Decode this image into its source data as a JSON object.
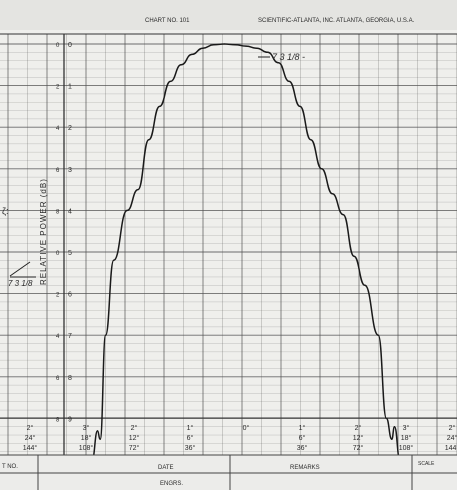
{
  "header": {
    "chart_no_label": "CHART NO. 101",
    "company": "SCIENTIFIC-ATLANTA, INC. ATLANTA, GEORGIA, U.S.A."
  },
  "annotations": {
    "peak_note": "7 3 1/8 -",
    "left_note": "7 3 1/8"
  },
  "footer": {
    "chart_no": "T NO.",
    "date": "DATE",
    "engrs": "ENGRS.",
    "remarks": "REMARKS",
    "scale": "SCALE"
  },
  "colors": {
    "paper": "#efefec",
    "grid": "#555555",
    "trace": "#1a1a1a"
  },
  "chart_data": {
    "type": "line",
    "title": "",
    "xlabel": "",
    "ylabel": "RELATIVE POWER (dB)",
    "ylim": [
      0,
      10
    ],
    "y_ticks": [
      "0",
      "1",
      "2",
      "3",
      "4",
      "5",
      "6",
      "7",
      "8",
      "9",
      "10"
    ],
    "left_column_labels": [
      "0",
      "2",
      "4",
      "6",
      "8",
      "0",
      "2",
      "4",
      "6",
      "8",
      "0"
    ],
    "x_tick_labels": [
      {
        "deg": "2°",
        "a": "24°",
        "b": "144°"
      },
      {
        "deg": "3°",
        "a": "18°",
        "b": "108°"
      },
      {
        "deg": "2°",
        "a": "12°",
        "b": "72°"
      },
      {
        "deg": "1°",
        "a": "6°",
        "b": "36°"
      },
      {
        "deg": "0°",
        "a": "",
        "b": ""
      },
      {
        "deg": "1°",
        "a": "6°",
        "b": "36°"
      },
      {
        "deg": "2°",
        "a": "12°",
        "b": "72°"
      },
      {
        "deg": "3°",
        "a": "18°",
        "b": "108°"
      },
      {
        "deg": "2°",
        "a": "24°",
        "b": "144°"
      }
    ],
    "series": [
      {
        "x": [
          -30,
          -28.5,
          -27.5,
          -27,
          -26,
          -24.5,
          -22,
          -20,
          -18,
          -16,
          -14,
          -12,
          -10,
          -8,
          -6,
          -4,
          -2,
          0,
          2,
          4,
          6,
          8,
          10,
          12,
          14,
          16,
          18,
          20,
          22,
          24.5,
          26,
          27,
          27.5,
          28.5,
          30
        ],
        "values": [
          10,
          10,
          9.3,
          9.5,
          7,
          5.2,
          4.0,
          3.5,
          2.3,
          1.5,
          0.9,
          0.5,
          0.25,
          0.1,
          0.02,
          0.0,
          0.02,
          0.05,
          0.1,
          0.2,
          0.45,
          0.9,
          1.5,
          2.3,
          3.0,
          3.6,
          4.1,
          5.1,
          5.8,
          7.0,
          9.0,
          9.5,
          9.2,
          10,
          10
        ]
      }
    ]
  }
}
